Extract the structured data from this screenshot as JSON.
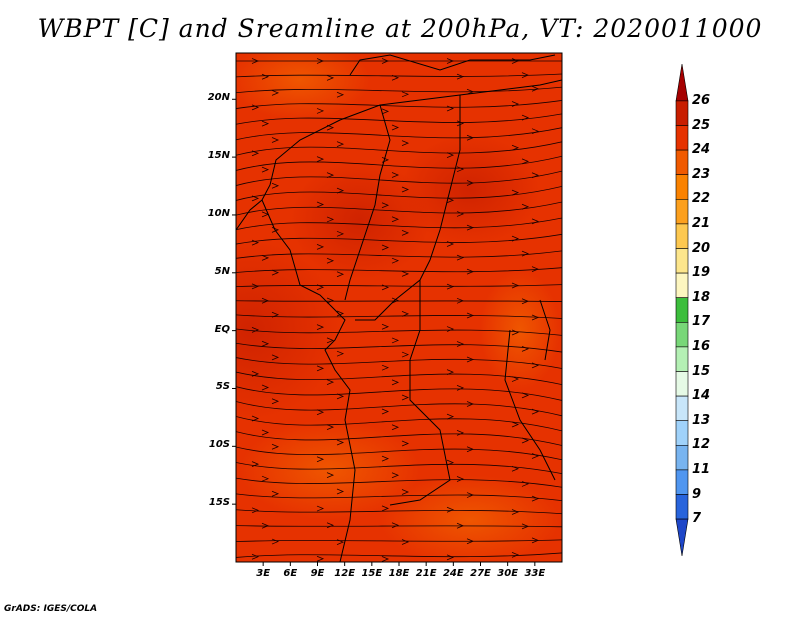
{
  "title": "WBPT [C] and Sreamline at 200hPa, VT: 2020011000",
  "credit": "GrADS: IGES/COLA",
  "map": {
    "lon_range": [
      0,
      36
    ],
    "lat_range": [
      -20,
      24
    ],
    "lat_labels": [
      {
        "value": 20,
        "text": "20N"
      },
      {
        "value": 15,
        "text": "15N"
      },
      {
        "value": 10,
        "text": "10N"
      },
      {
        "value": 5,
        "text": "5N"
      },
      {
        "value": 0,
        "text": "EQ"
      },
      {
        "value": -5,
        "text": "5S"
      },
      {
        "value": -10,
        "text": "10S"
      },
      {
        "value": -15,
        "text": "15S"
      }
    ],
    "lon_labels": [
      {
        "value": 3,
        "text": "3E"
      },
      {
        "value": 6,
        "text": "6E"
      },
      {
        "value": 9,
        "text": "9E"
      },
      {
        "value": 12,
        "text": "12E"
      },
      {
        "value": 15,
        "text": "15E"
      },
      {
        "value": 18,
        "text": "18E"
      },
      {
        "value": 21,
        "text": "21E"
      },
      {
        "value": 24,
        "text": "24E"
      },
      {
        "value": 27,
        "text": "27E"
      },
      {
        "value": 30,
        "text": "30E"
      },
      {
        "value": 33,
        "text": "33E"
      }
    ]
  },
  "colorbar": {
    "labels": [
      "26",
      "25",
      "24",
      "23",
      "22",
      "21",
      "20",
      "19",
      "18",
      "17",
      "16",
      "15",
      "14",
      "13",
      "12",
      "11",
      "9",
      "7"
    ],
    "colors": [
      "#a50000",
      "#c81e00",
      "#e63200",
      "#f05a00",
      "#fa8200",
      "#fca01e",
      "#fdc850",
      "#fde68c",
      "#fdf6c0",
      "#3cbe3c",
      "#78d778",
      "#b4f0b4",
      "#e6fae6",
      "#c8e6fa",
      "#a0d2fa",
      "#78b4f0",
      "#5096f0",
      "#2864dc",
      "#1e46c8"
    ]
  }
}
